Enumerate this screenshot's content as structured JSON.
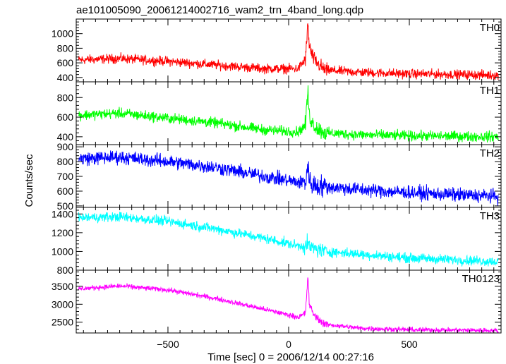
{
  "title": "ae101005090_20061214002716_wam2_trn_4band_long.qdp",
  "xlabel": "Time [sec] 0 = 2006/12/14 00:27:16",
  "ylabel": "Counts/sec",
  "chart_data": {
    "type": "line",
    "title": "ae101005090_20061214002716_wam2_trn_4band_long.qdp",
    "xlabel": "Time [sec] 0 = 2006/12/14 00:27:16",
    "ylabel": "Counts/sec",
    "xlim": [
      -880,
      880
    ],
    "xticks": [
      -500,
      0,
      500
    ],
    "grid": false,
    "panels": [
      {
        "name": "TH0",
        "color": "#ff0000",
        "ylim": [
          340,
          1200
        ],
        "yticks": [
          400,
          600,
          800,
          1000
        ],
        "x": [
          -870,
          -700,
          -500,
          -300,
          -100,
          40,
          70,
          80,
          85,
          95,
          110,
          150,
          300,
          500,
          700,
          870
        ],
        "y": [
          640,
          660,
          620,
          570,
          520,
          520,
          650,
          1150,
          850,
          720,
          620,
          500,
          470,
          450,
          440,
          430
        ],
        "noise": 55
      },
      {
        "name": "TH1",
        "color": "#00ff00",
        "ylim": [
          320,
          960
        ],
        "yticks": [
          400,
          600,
          800
        ],
        "x": [
          -870,
          -700,
          -500,
          -300,
          -100,
          40,
          70,
          80,
          85,
          95,
          110,
          150,
          300,
          500,
          700,
          870
        ],
        "y": [
          620,
          640,
          590,
          540,
          470,
          450,
          520,
          890,
          620,
          560,
          500,
          440,
          420,
          410,
          405,
          400
        ],
        "noise": 45
      },
      {
        "name": "TH2",
        "color": "#0000ff",
        "ylim": [
          490,
          915
        ],
        "yticks": [
          500,
          600,
          700,
          800,
          900
        ],
        "x": [
          -870,
          -700,
          -500,
          -300,
          -100,
          40,
          70,
          80,
          85,
          95,
          110,
          150,
          300,
          500,
          700,
          870
        ],
        "y": [
          820,
          830,
          800,
          760,
          700,
          660,
          660,
          780,
          680,
          650,
          640,
          630,
          610,
          590,
          575,
          565
        ],
        "noise": 40
      },
      {
        "name": "TH3",
        "color": "#00ffff",
        "ylim": [
          800,
          1470
        ],
        "yticks": [
          800,
          1000,
          1200,
          1400
        ],
        "x": [
          -870,
          -700,
          -500,
          -300,
          -100,
          40,
          70,
          80,
          85,
          95,
          110,
          150,
          300,
          500,
          700,
          870
        ],
        "y": [
          1360,
          1370,
          1320,
          1240,
          1140,
          1060,
          1060,
          1080,
          1050,
          1040,
          1030,
          1000,
          970,
          930,
          910,
          890
        ],
        "noise": 45
      },
      {
        "name": "TH0123",
        "color": "#ff00ff",
        "ylim": [
          2200,
          3950
        ],
        "yticks": [
          2500,
          3000,
          3500
        ],
        "x": [
          -870,
          -700,
          -500,
          -300,
          -100,
          40,
          70,
          80,
          85,
          95,
          110,
          150,
          300,
          500,
          700,
          870
        ],
        "y": [
          3430,
          3510,
          3400,
          3160,
          2860,
          2640,
          2750,
          3850,
          3020,
          2840,
          2660,
          2440,
          2330,
          2290,
          2280,
          2270
        ],
        "noise": 60
      }
    ]
  }
}
